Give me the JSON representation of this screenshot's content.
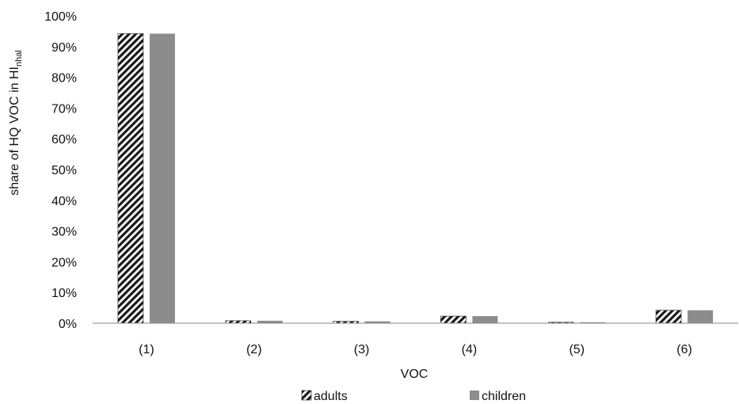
{
  "chart_data": {
    "type": "bar",
    "title": "",
    "xlabel": "VOC",
    "ylabel": {
      "main": "share of HQ VOC in HI",
      "subscript": "nhal"
    },
    "categories": [
      "(1)",
      "(2)",
      "(3)",
      "(4)",
      "(5)",
      "(6)"
    ],
    "series": [
      {
        "name": "adults",
        "values": [
          94.2,
          0.8,
          0.6,
          2.3,
          0.3,
          4.2
        ],
        "pattern": "diagonal-hatch"
      },
      {
        "name": "children",
        "values": [
          94.2,
          0.8,
          0.6,
          2.3,
          0.3,
          4.2
        ],
        "pattern": "solid"
      }
    ],
    "ylim": [
      0,
      100
    ],
    "yticks": [
      0,
      10,
      20,
      30,
      40,
      50,
      60,
      70,
      80,
      90,
      100
    ],
    "ytick_labels": [
      "0%",
      "10%",
      "20%",
      "30%",
      "40%",
      "50%",
      "60%",
      "70%",
      "80%",
      "90%",
      "100%"
    ],
    "grid": false,
    "legend_position": "bottom",
    "colors": {
      "adults_dark": "#1a1a1a",
      "adults_light": "#ffffff",
      "children": "#8c8c8c",
      "axis": "#8a8a8a"
    }
  }
}
